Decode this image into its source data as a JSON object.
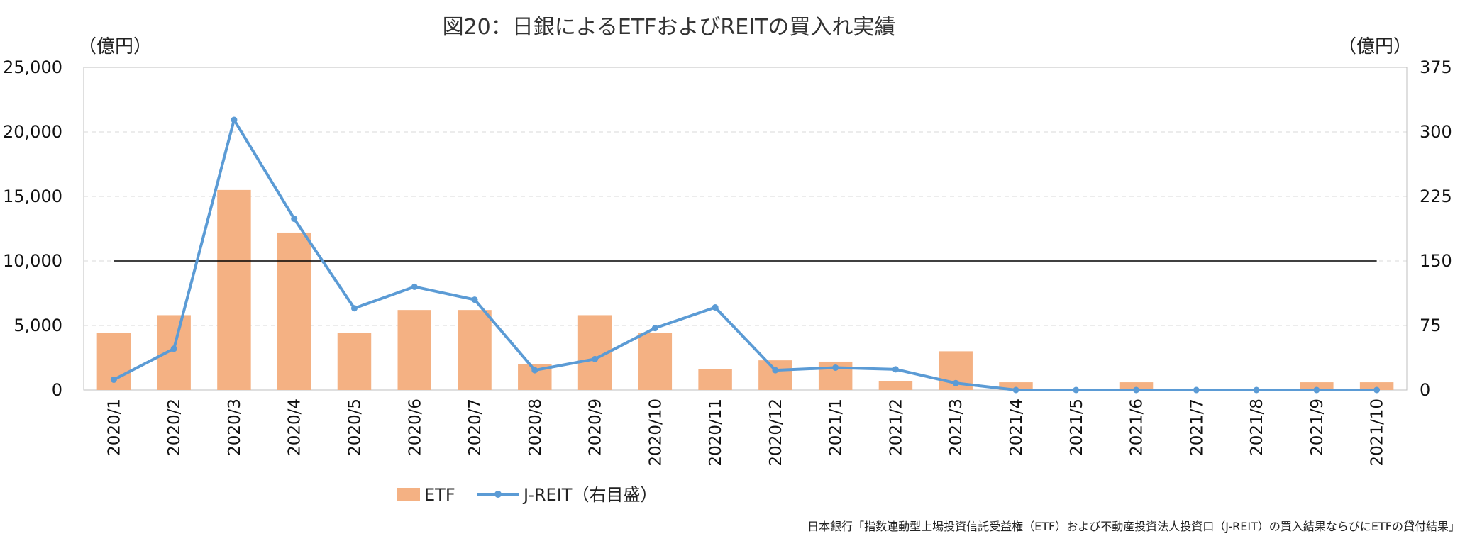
{
  "chart_data": {
    "type": "bar",
    "title": "図20：日銀によるETFおよびREITの買入れ実績",
    "y_unit_left": "（億円）",
    "y_unit_right": "（億円）",
    "categories": [
      "2020/1",
      "2020/2",
      "2020/3",
      "2020/4",
      "2020/5",
      "2020/6",
      "2020/7",
      "2020/8",
      "2020/9",
      "2020/10",
      "2020/11",
      "2020/12",
      "2021/1",
      "2021/2",
      "2021/3",
      "2021/4",
      "2021/5",
      "2021/6",
      "2021/7",
      "2021/8",
      "2021/9",
      "2021/10"
    ],
    "series": [
      {
        "name": "ETF",
        "type": "bar",
        "axis": "left",
        "color": "#f4b183",
        "values": [
          4400,
          5800,
          15500,
          12200,
          4400,
          6200,
          6200,
          2000,
          5800,
          4400,
          1600,
          2300,
          2200,
          700,
          3000,
          600,
          0,
          600,
          0,
          0,
          600,
          600
        ]
      },
      {
        "name": "J-REIT（右目盛）",
        "type": "line",
        "axis": "right",
        "color": "#5b9bd5",
        "values": [
          12,
          48,
          314,
          199,
          95,
          120,
          105,
          23,
          36,
          72,
          96,
          23,
          26,
          24,
          8,
          0,
          0,
          0,
          0,
          0,
          0,
          0
        ]
      }
    ],
    "reference_line": {
      "axis": "left",
      "value": 10000,
      "color": "#000000"
    },
    "y_left": {
      "min": 0,
      "max": 25000,
      "ticks": [
        "0",
        "5,000",
        "10,000",
        "15,000",
        "20,000",
        "25,000"
      ],
      "tick_values": [
        0,
        5000,
        10000,
        15000,
        20000,
        25000
      ]
    },
    "y_right": {
      "min": 0,
      "max": 375,
      "ticks": [
        "0",
        "75",
        "150",
        "225",
        "300",
        "375"
      ],
      "tick_values": [
        0,
        75,
        150,
        225,
        300,
        375
      ]
    },
    "grid": true,
    "grid_color": "#d9d9d9",
    "legend_position": "bottom",
    "source": "日本銀行「指数連動型上場投資信託受益権（ETF）および不動産投資法人投資口（J-REIT）の買入結果ならびにETFの貸付結果」"
  }
}
